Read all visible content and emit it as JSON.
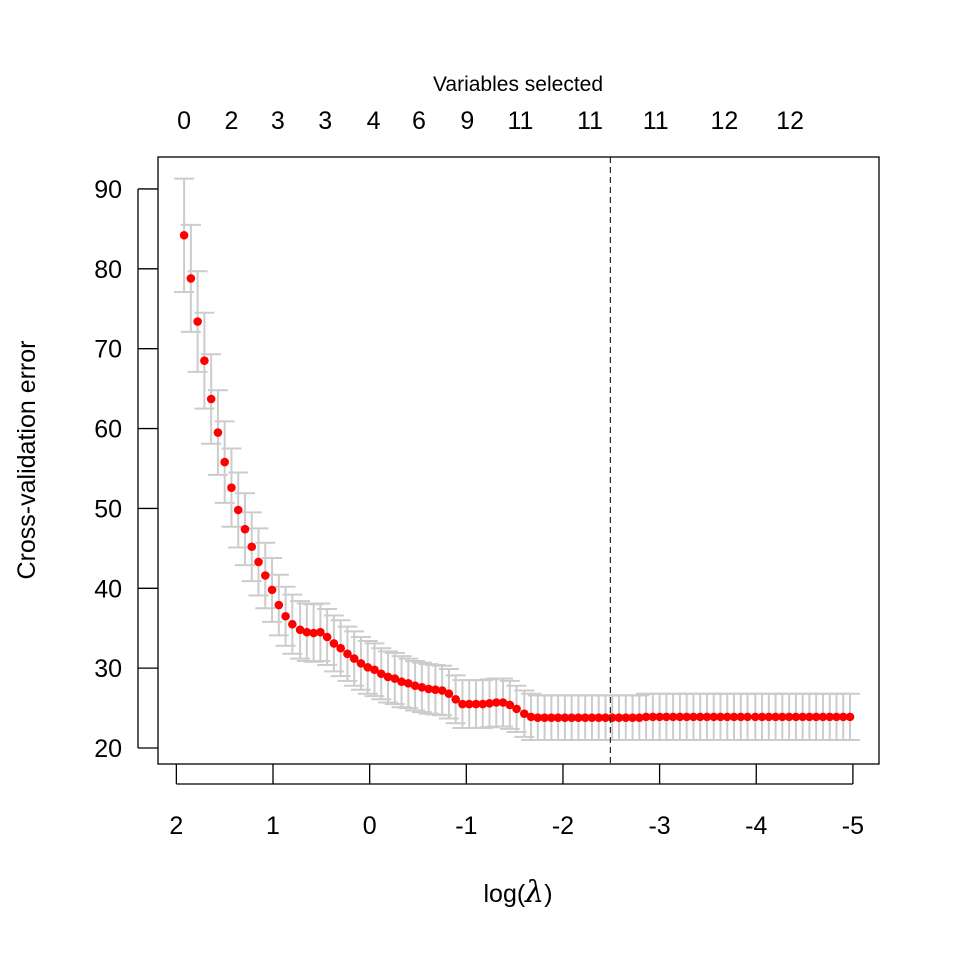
{
  "chart_data": {
    "type": "scatter",
    "xlabel_prefix": "log(",
    "xlabel_symbol": "λ",
    "xlabel_suffix": ")",
    "ylabel": "Cross-validation error",
    "top_axis_title": "Variables selected",
    "xlim": [
      2.19,
      -5.27
    ],
    "ylim": [
      18,
      94
    ],
    "x_ticks": [
      2,
      1,
      0,
      -1,
      -2,
      -3,
      -4,
      -5
    ],
    "x_tick_labels": [
      "2",
      "1",
      "0",
      "-1",
      "-2",
      "-3",
      "-4",
      "-5"
    ],
    "y_ticks": [
      20,
      30,
      40,
      50,
      60,
      70,
      80,
      90
    ],
    "y_tick_labels": [
      "20",
      "30",
      "40",
      "50",
      "60",
      "70",
      "80",
      "90"
    ],
    "top_ticks": [
      1.92,
      1.43,
      0.95,
      0.46,
      -0.04,
      -0.51,
      -1.01,
      -1.56,
      -2.28,
      -2.96,
      -3.67,
      -4.35
    ],
    "top_tick_labels": [
      "0",
      "2",
      "3",
      "3",
      "4",
      "6",
      "9",
      "11",
      "11",
      "11",
      "12",
      "12"
    ],
    "vline": -2.49,
    "point_color": "#ff0000",
    "errorbar_color": "#cccccc",
    "grid": false,
    "log_lambda": [
      1.92,
      1.85,
      1.78,
      1.71,
      1.64,
      1.57,
      1.5,
      1.43,
      1.36,
      1.29,
      1.22,
      1.15,
      1.08,
      1.01,
      0.94,
      0.87,
      0.8,
      0.72,
      0.65,
      0.58,
      0.51,
      0.44,
      0.37,
      0.3,
      0.23,
      0.16,
      0.09,
      0.02,
      -0.05,
      -0.12,
      -0.19,
      -0.26,
      -0.33,
      -0.4,
      -0.47,
      -0.54,
      -0.61,
      -0.68,
      -0.75,
      -0.82,
      -0.89,
      -0.96,
      -1.03,
      -1.1,
      -1.17,
      -1.24,
      -1.31,
      -1.38,
      -1.45,
      -1.52,
      -1.6,
      -1.67,
      -1.74,
      -1.81,
      -1.88,
      -1.95,
      -2.02,
      -2.09,
      -2.16,
      -2.23,
      -2.3,
      -2.37,
      -2.44,
      -2.51,
      -2.58,
      -2.65,
      -2.72,
      -2.79,
      -2.86,
      -2.93,
      -3.0,
      -3.07,
      -3.14,
      -3.21,
      -3.28,
      -3.35,
      -3.42,
      -3.49,
      -3.56,
      -3.63,
      -3.7,
      -3.77,
      -3.84,
      -3.91,
      -3.99,
      -4.06,
      -4.13,
      -4.2,
      -4.27,
      -4.34,
      -4.41,
      -4.48,
      -4.55,
      -4.62,
      -4.69,
      -4.76,
      -4.83,
      -4.9,
      -4.97
    ],
    "cv_error": [
      84.2,
      78.8,
      73.4,
      68.5,
      63.7,
      59.5,
      55.8,
      52.6,
      49.8,
      47.4,
      45.2,
      43.3,
      41.6,
      39.8,
      37.9,
      36.5,
      35.5,
      34.8,
      34.5,
      34.4,
      34.5,
      33.9,
      33.1,
      32.5,
      31.8,
      31.2,
      30.6,
      30.1,
      29.8,
      29.3,
      28.9,
      28.7,
      28.3,
      28.1,
      27.8,
      27.6,
      27.4,
      27.3,
      27.2,
      26.8,
      26.1,
      25.5,
      25.5,
      25.5,
      25.5,
      25.6,
      25.7,
      25.7,
      25.4,
      24.9,
      24.3,
      23.9,
      23.8,
      23.8,
      23.8,
      23.8,
      23.8,
      23.8,
      23.8,
      23.8,
      23.8,
      23.8,
      23.8,
      23.8,
      23.8,
      23.8,
      23.8,
      23.8,
      23.9,
      23.9,
      23.9,
      23.9,
      23.9,
      23.9,
      23.9,
      23.9,
      23.9,
      23.9,
      23.9,
      23.9,
      23.9,
      23.9,
      23.9,
      23.9,
      23.9,
      23.9,
      23.9,
      23.9,
      23.9,
      23.9,
      23.9,
      23.9,
      23.9,
      23.9,
      23.9,
      23.9,
      23.9,
      23.9,
      23.9,
      23.9,
      23.9
    ],
    "se": [
      7.1,
      6.7,
      6.3,
      6.0,
      5.6,
      5.3,
      5.1,
      4.9,
      4.7,
      4.5,
      4.3,
      4.2,
      4.1,
      4.0,
      3.8,
      3.7,
      3.7,
      3.6,
      3.6,
      3.6,
      3.6,
      3.5,
      3.5,
      3.5,
      3.4,
      3.4,
      3.3,
      3.3,
      3.3,
      3.2,
      3.2,
      3.2,
      3.2,
      3.1,
      3.1,
      3.1,
      3.1,
      3.1,
      3.1,
      3.1,
      3.0,
      3.0,
      3.0,
      3.0,
      3.0,
      3.0,
      3.0,
      3.0,
      3.0,
      2.9,
      2.9,
      2.9,
      2.8,
      2.8,
      2.8,
      2.8,
      2.8,
      2.8,
      2.8,
      2.8,
      2.8,
      2.8,
      2.8,
      2.8,
      2.8,
      2.8,
      2.8,
      2.8,
      2.9,
      2.9,
      2.9,
      2.9,
      2.9,
      2.9,
      2.9,
      2.9,
      2.9,
      2.9,
      2.9,
      2.9,
      2.9,
      2.9,
      2.9,
      2.9,
      2.9,
      2.9,
      2.9,
      2.9,
      2.9,
      2.9,
      2.9,
      2.9,
      2.9,
      2.9,
      2.9,
      2.9,
      2.9,
      2.9,
      2.9,
      2.9,
      2.9
    ]
  }
}
